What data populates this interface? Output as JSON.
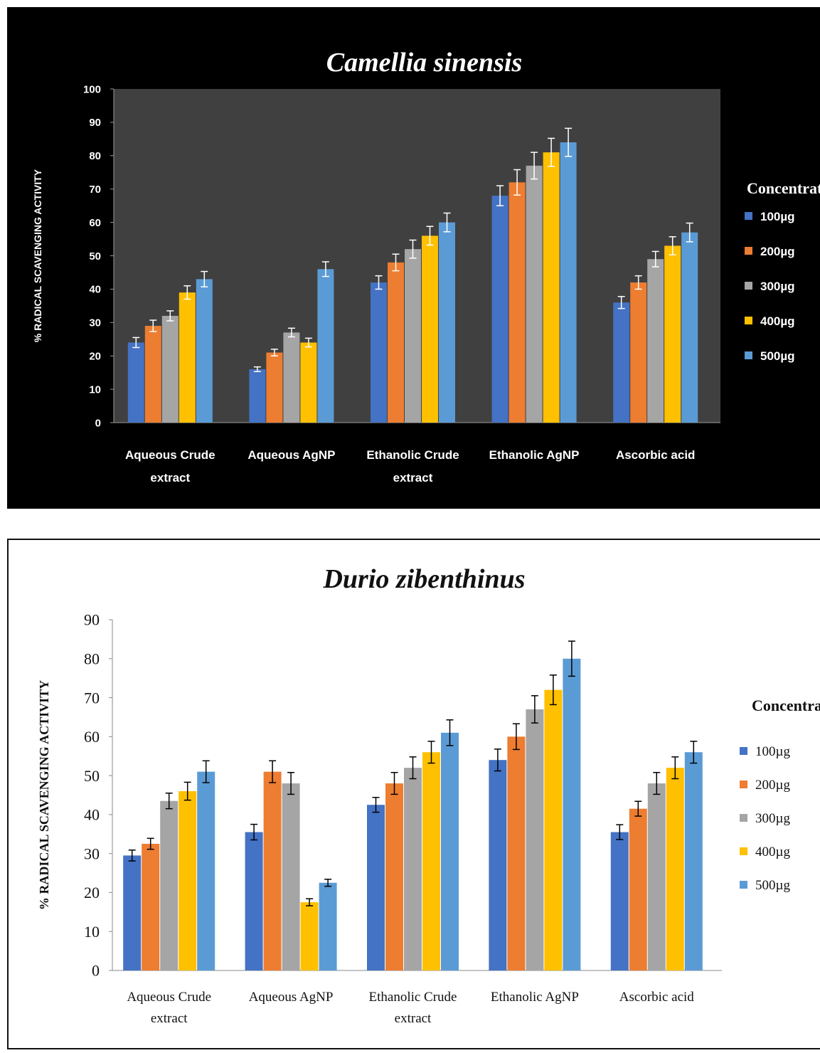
{
  "chart_data": [
    {
      "type": "bar",
      "title": "Camellia sinensis",
      "ylabel": "% RADICAL SCAVENGING ACTIVITY",
      "xlabel": "",
      "ylim": [
        0,
        100
      ],
      "yticks": [
        0,
        10,
        20,
        30,
        40,
        50,
        60,
        70,
        80,
        90,
        100
      ],
      "grid": false,
      "legend_title": "Concentrations",
      "legend_position": "right",
      "categories": [
        [
          "Aqueous  Crude",
          "extract"
        ],
        [
          "Aqueous   AgNP"
        ],
        [
          "Ethanolic Crude",
          "extract"
        ],
        [
          "Ethanolic AgNP"
        ],
        [
          "Ascorbic acid"
        ]
      ],
      "series": [
        {
          "name": "100µg",
          "color": "#4472c4",
          "values": [
            24,
            16,
            42,
            68,
            36
          ],
          "errors": [
            1.5,
            0.7,
            2,
            3,
            1.8
          ]
        },
        {
          "name": "200µg",
          "color": "#ed7d31",
          "values": [
            29,
            21,
            48,
            72,
            42
          ],
          "errors": [
            1.7,
            1,
            2.5,
            3.8,
            2
          ]
        },
        {
          "name": "300µg",
          "color": "#a5a5a5",
          "values": [
            32,
            27,
            52,
            77,
            49
          ],
          "errors": [
            1.5,
            1.3,
            2.7,
            4,
            2.3
          ]
        },
        {
          "name": "400µg",
          "color": "#ffc000",
          "values": [
            39,
            24,
            56,
            81,
            53
          ],
          "errors": [
            2,
            1.3,
            2.8,
            4.2,
            2.7
          ]
        },
        {
          "name": "500µg",
          "color": "#5b9bd5",
          "values": [
            43,
            46,
            60,
            84,
            57
          ],
          "errors": [
            2.3,
            2.2,
            2.8,
            4.2,
            2.8
          ]
        }
      ]
    },
    {
      "type": "bar",
      "title": "Durio zibenthinus",
      "ylabel": "% RADICAL  SCAVENGING ACTIVITY",
      "xlabel": "",
      "ylim": [
        0,
        90
      ],
      "yticks": [
        0,
        10,
        20,
        30,
        40,
        50,
        60,
        70,
        80,
        90
      ],
      "grid": false,
      "legend_title": "Concentrations",
      "legend_position": "right",
      "categories": [
        [
          "Aqueous Crude",
          "extract"
        ],
        [
          "Aqueous   AgNP"
        ],
        [
          "Ethanolic Crude",
          "extract"
        ],
        [
          "Ethanolic AgNP"
        ],
        [
          "Ascorbic acid"
        ]
      ],
      "series": [
        {
          "name": "100µg",
          "color": "#4472c4",
          "values": [
            29.5,
            35.5,
            42.5,
            54,
            35.5
          ],
          "errors": [
            1.4,
            2,
            1.9,
            2.8,
            1.9
          ]
        },
        {
          "name": "200µg",
          "color": "#ed7d31",
          "values": [
            32.5,
            51,
            48,
            60,
            41.5
          ],
          "errors": [
            1.4,
            2.8,
            2.8,
            3.3,
            1.9
          ]
        },
        {
          "name": "300µg",
          "color": "#a5a5a5",
          "values": [
            43.5,
            48,
            52,
            67,
            48
          ],
          "errors": [
            2,
            2.8,
            2.8,
            3.5,
            2.8
          ]
        },
        {
          "name": "400µg",
          "color": "#ffc000",
          "values": [
            46,
            17.5,
            56,
            72,
            52
          ],
          "errors": [
            2.3,
            0.9,
            2.8,
            3.8,
            2.8
          ]
        },
        {
          "name": "500µg",
          "color": "#5b9bd5",
          "values": [
            51,
            22.5,
            61,
            80,
            56
          ],
          "errors": [
            2.8,
            0.9,
            3.3,
            4.5,
            2.8
          ]
        }
      ]
    }
  ]
}
